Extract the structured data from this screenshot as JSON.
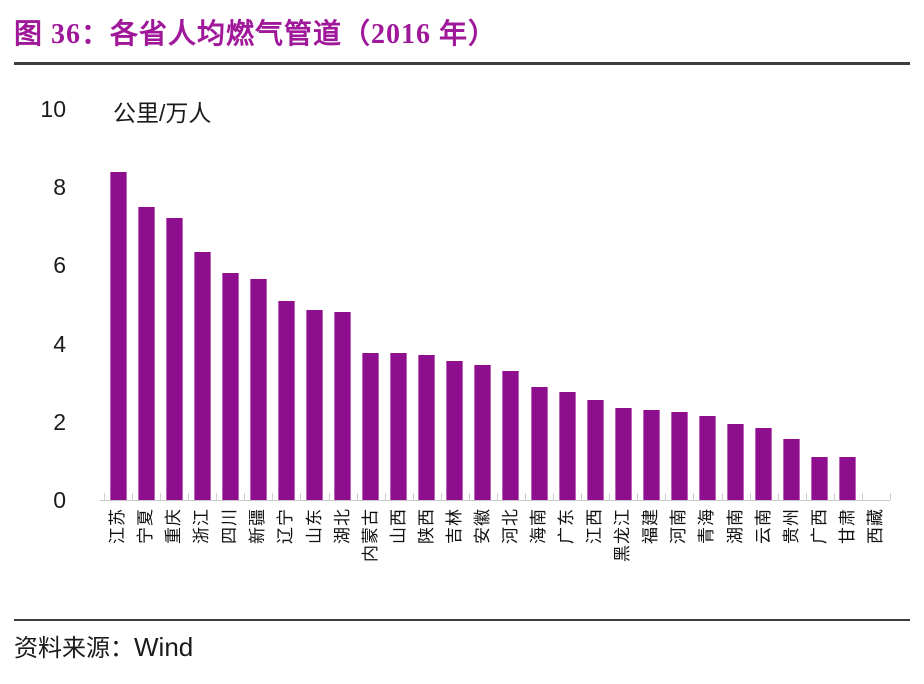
{
  "figure": {
    "title": "图 36：各省人均燃气管道（2016 年）",
    "source_label": "资料来源：",
    "source_value": "Wind"
  },
  "colors": {
    "title_text": "#a0189a",
    "bar_fill": "#8e0f8e",
    "bar_edge": "#bf63ba",
    "axis_line": "#c9c9c9",
    "divider_rule": "#3d3d3d",
    "body_text": "#1a1a1a"
  },
  "chart_data": {
    "type": "bar",
    "title": "图 36：各省人均燃气管道（2016 年）",
    "unit_label": "公里/万人",
    "xlabel": "",
    "ylabel": "公里/万人",
    "ylim": [
      0,
      10
    ],
    "yticks": [
      0,
      2,
      4,
      6,
      8,
      10
    ],
    "grid": false,
    "legend": "none",
    "bar_orientation": "vertical",
    "categories": [
      "江苏",
      "宁夏",
      "重庆",
      "浙江",
      "四川",
      "新疆",
      "辽宁",
      "山东",
      "湖北",
      "内蒙古",
      "山西",
      "陕西",
      "吉林",
      "安徽",
      "河北",
      "海南",
      "广东",
      "江西",
      "黑龙江",
      "福建",
      "河南",
      "青海",
      "湖南",
      "云南",
      "贵州",
      "广西",
      "甘肃",
      "西藏"
    ],
    "values": [
      8.4,
      7.5,
      7.2,
      6.35,
      5.8,
      5.65,
      5.1,
      4.85,
      4.8,
      3.75,
      3.75,
      3.7,
      3.55,
      3.45,
      3.3,
      2.9,
      2.75,
      2.55,
      2.35,
      2.3,
      2.25,
      2.15,
      1.95,
      1.85,
      1.55,
      1.1,
      1.1,
      0
    ]
  }
}
